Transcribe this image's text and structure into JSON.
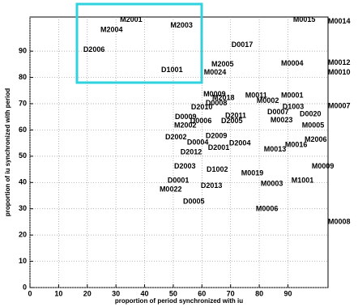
{
  "chart_data": {
    "type": "scatter",
    "xlabel": "proportion of period  synchronized with iu",
    "ylabel": "proportion of iu synchronized with period",
    "labels": [
      "M2001",
      "M2004",
      "M2003",
      "M0015",
      "M0014",
      "D2006",
      "D0017",
      "D1001",
      "M2005",
      "M0024",
      "M0004",
      "M0012",
      "M0010",
      "M0009",
      "M2018",
      "M0011",
      "M0001",
      "M0002",
      "D0008",
      "D2010",
      "D1003",
      "M0007",
      "D0007",
      "D0020",
      "D0009",
      "D2011",
      "D0006",
      "D2005",
      "M0023",
      "M0005",
      "M2002",
      "D2002",
      "D2009",
      "M2006",
      "D0004",
      "D2004",
      "M0016",
      "D2001",
      "D2012",
      "M0013",
      "M0009",
      "D2003",
      "D1002",
      "M0019",
      "M1001",
      "D0001",
      "M0003",
      "M0022",
      "D2013",
      "D0005",
      "M0006",
      "M0008"
    ],
    "x": [
      31.4,
      24.6,
      49,
      91.8,
      104,
      18.6,
      70.3,
      45.8,
      63.3,
      60.7,
      87.6,
      104,
      104,
      60.5,
      63.6,
      75.1,
      87.6,
      79.1,
      61.3,
      56.2,
      88.1,
      104,
      82.8,
      94.1,
      50.6,
      68.1,
      55.9,
      66.7,
      83.9,
      94.9,
      50.3,
      47.2,
      61.3,
      95.8,
      54.8,
      69.5,
      89,
      62.1,
      52.5,
      81.6,
      98.3,
      50.3,
      61.6,
      73.7,
      91.2,
      48,
      80.5,
      45.2,
      59.6,
      53.4,
      78.8,
      104
    ],
    "values": [
      101.9,
      98.1,
      99.7,
      101.9,
      101.2,
      90.4,
      92.3,
      82.7,
      84.9,
      81.8,
      85.2,
      85.5,
      81.8,
      73.5,
      72.2,
      73.1,
      73.1,
      71,
      70.1,
      68.5,
      68.8,
      69.1,
      66.7,
      66,
      64.8,
      65.4,
      63.3,
      63.3,
      63.6,
      61.7,
      61.7,
      57.1,
      57.7,
      56.2,
      55.2,
      54.9,
      54.3,
      53.1,
      51.5,
      52.5,
      46,
      46,
      44.8,
      43.5,
      40.7,
      40.7,
      39.5,
      37.3,
      38.6,
      32.7,
      29.9,
      25
    ],
    "xlim": [
      0,
      104
    ],
    "ylim": [
      0,
      103
    ],
    "xticks": [
      0,
      10,
      20,
      30,
      40,
      50,
      60,
      70,
      80,
      90
    ],
    "yticks": [
      0,
      10,
      20,
      30,
      40,
      50,
      60,
      70,
      80,
      90
    ],
    "grid": true
  }
}
